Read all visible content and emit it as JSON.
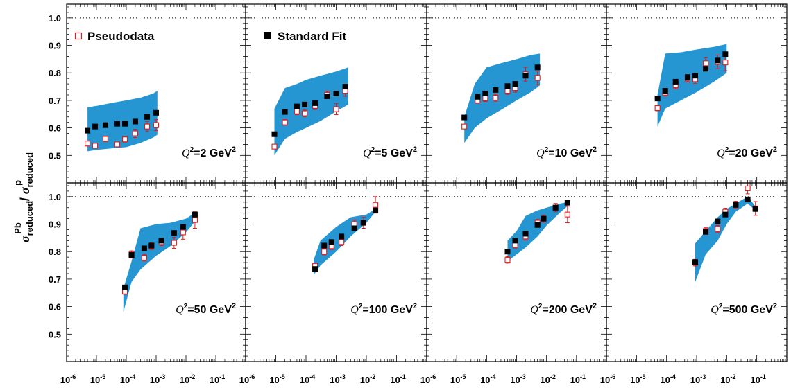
{
  "legend": {
    "pseudodata_label": "Pseudodata",
    "standard_fit_label": "Standard Fit"
  },
  "y_axis_label": {
    "sigma": "σ",
    "num_sub": "reduced",
    "num_sup": "Pb",
    "slash": " / ",
    "den_sub": "reduced",
    "den_sup": "p"
  },
  "colors": {
    "band": "#2596d1",
    "pseudodata": "#e31a1c",
    "standard_fit": "#000000"
  },
  "chart_data": [
    {
      "type": "scatter",
      "q2_label": "=2 GeV",
      "q2_var": "Q",
      "q2_exp": "2",
      "ylim": [
        0.4,
        1.05
      ],
      "xlim_log10": [
        -6,
        0
      ],
      "band": [
        [
          5e-06,
          0.675,
          0.515
        ],
        [
          1e-05,
          0.68,
          0.52
        ],
        [
          3e-05,
          0.69,
          0.525
        ],
        [
          0.0001,
          0.7,
          0.53
        ],
        [
          0.0003,
          0.71,
          0.545
        ],
        [
          0.0008,
          0.725,
          0.565
        ],
        [
          0.0011,
          0.735,
          0.575
        ]
      ],
      "standard_fit": [
        [
          5e-06,
          0.59
        ],
        [
          9e-06,
          0.605
        ],
        [
          2e-05,
          0.61
        ],
        [
          5e-05,
          0.615
        ],
        [
          9e-05,
          0.615
        ],
        [
          0.0002,
          0.623
        ],
        [
          0.0005,
          0.64
        ],
        [
          0.001,
          0.655
        ]
      ],
      "pseudodata": [
        [
          5e-06,
          0.543,
          0.008
        ],
        [
          9e-06,
          0.535,
          0.008
        ],
        [
          2e-05,
          0.56,
          0.01
        ],
        [
          5e-05,
          0.54,
          0.008
        ],
        [
          9e-05,
          0.558,
          0.01
        ],
        [
          0.0002,
          0.58,
          0.015
        ],
        [
          0.0005,
          0.605,
          0.018
        ],
        [
          0.001,
          0.61,
          0.02
        ]
      ]
    },
    {
      "type": "scatter",
      "q2_label": "=5 GeV",
      "q2_var": "Q",
      "q2_exp": "2",
      "ylim": [
        0.4,
        1.05
      ],
      "xlim_log10": [
        -6,
        0
      ],
      "band": [
        [
          9e-06,
          0.67,
          0.5
        ],
        [
          2e-05,
          0.745,
          0.56
        ],
        [
          5e-05,
          0.76,
          0.585
        ],
        [
          0.0001,
          0.775,
          0.6
        ],
        [
          0.0003,
          0.79,
          0.625
        ],
        [
          0.001,
          0.805,
          0.66
        ],
        [
          0.0025,
          0.82,
          0.685
        ]
      ],
      "standard_fit": [
        [
          9e-06,
          0.577
        ],
        [
          2e-05,
          0.658
        ],
        [
          5e-05,
          0.678
        ],
        [
          9e-05,
          0.685
        ],
        [
          0.0002,
          0.69
        ],
        [
          0.0005,
          0.715
        ],
        [
          0.001,
          0.725
        ],
        [
          0.002,
          0.75
        ]
      ],
      "pseudodata": [
        [
          9e-06,
          0.532,
          0.008
        ],
        [
          2e-05,
          0.62,
          0.01
        ],
        [
          5e-05,
          0.66,
          0.012
        ],
        [
          9e-05,
          0.653,
          0.012
        ],
        [
          0.0002,
          0.68,
          0.013
        ],
        [
          0.0005,
          0.72,
          0.013
        ],
        [
          0.001,
          0.668,
          0.02
        ],
        [
          0.002,
          0.735,
          0.02
        ]
      ]
    },
    {
      "type": "scatter",
      "q2_label": "=10 GeV",
      "q2_var": "Q",
      "q2_exp": "2",
      "ylim": [
        0.4,
        1.05
      ],
      "xlim_log10": [
        -6,
        0
      ],
      "band": [
        [
          1.8e-05,
          0.64,
          0.545
        ],
        [
          4e-05,
          0.76,
          0.6
        ],
        [
          0.0001,
          0.82,
          0.635
        ],
        [
          0.0003,
          0.835,
          0.665
        ],
        [
          0.001,
          0.85,
          0.7
        ],
        [
          0.003,
          0.865,
          0.73
        ],
        [
          0.006,
          0.87,
          0.755
        ]
      ],
      "standard_fit": [
        [
          1.8e-05,
          0.638
        ],
        [
          5e-05,
          0.713
        ],
        [
          9e-05,
          0.725
        ],
        [
          0.0002,
          0.738
        ],
        [
          0.0005,
          0.752
        ],
        [
          0.0009,
          0.76
        ],
        [
          0.002,
          0.79
        ],
        [
          0.005,
          0.82
        ]
      ],
      "pseudodata": [
        [
          1.8e-05,
          0.605,
          0.008
        ],
        [
          5e-05,
          0.7,
          0.01
        ],
        [
          9e-05,
          0.708,
          0.012
        ],
        [
          0.0002,
          0.71,
          0.013
        ],
        [
          0.0005,
          0.735,
          0.013
        ],
        [
          0.0009,
          0.745,
          0.015
        ],
        [
          0.002,
          0.795,
          0.025
        ],
        [
          0.005,
          0.782,
          0.025
        ]
      ]
    },
    {
      "type": "scatter",
      "q2_label": "=20 GeV",
      "q2_var": "Q",
      "q2_exp": "2",
      "ylim": [
        0.4,
        1.05
      ],
      "xlim_log10": [
        -6,
        0
      ],
      "band": [
        [
          5e-05,
          0.72,
          0.605
        ],
        [
          9e-05,
          0.87,
          0.67
        ],
        [
          0.0003,
          0.875,
          0.7
        ],
        [
          0.001,
          0.885,
          0.73
        ],
        [
          0.004,
          0.895,
          0.77
        ],
        [
          0.01,
          0.905,
          0.8
        ]
      ],
      "standard_fit": [
        [
          5e-05,
          0.707
        ],
        [
          9e-05,
          0.735
        ],
        [
          0.0002,
          0.768
        ],
        [
          0.0005,
          0.785
        ],
        [
          0.0009,
          0.79
        ],
        [
          0.002,
          0.815
        ],
        [
          0.005,
          0.845
        ],
        [
          0.009,
          0.868
        ]
      ],
      "pseudodata": [
        [
          5e-05,
          0.672,
          0.01
        ],
        [
          9e-05,
          0.728,
          0.012
        ],
        [
          0.0002,
          0.755,
          0.013
        ],
        [
          0.0005,
          0.78,
          0.013
        ],
        [
          0.0009,
          0.777,
          0.015
        ],
        [
          0.002,
          0.835,
          0.02
        ],
        [
          0.005,
          0.84,
          0.025
        ],
        [
          0.009,
          0.838,
          0.03
        ]
      ]
    },
    {
      "type": "scatter",
      "q2_label": "=50 GeV",
      "q2_var": "Q",
      "q2_exp": "2",
      "ylim": [
        0.4,
        1.05
      ],
      "xlim_log10": [
        -6,
        0
      ],
      "band": [
        [
          8e-05,
          0.665,
          0.58
        ],
        [
          0.00015,
          0.765,
          0.69
        ],
        [
          0.0003,
          0.885,
          0.735
        ],
        [
          0.001,
          0.9,
          0.785
        ],
        [
          0.003,
          0.905,
          0.82
        ],
        [
          0.01,
          0.92,
          0.87
        ],
        [
          0.022,
          0.945,
          0.915
        ]
      ],
      "standard_fit": [
        [
          9e-05,
          0.67
        ],
        [
          0.00015,
          0.788
        ],
        [
          0.0004,
          0.812
        ],
        [
          0.0007,
          0.822
        ],
        [
          0.0015,
          0.84
        ],
        [
          0.004,
          0.868
        ],
        [
          0.008,
          0.89
        ],
        [
          0.02,
          0.935
        ]
      ],
      "pseudodata": [
        [
          9e-05,
          0.655,
          0.01
        ],
        [
          0.00015,
          0.79,
          0.013
        ],
        [
          0.0004,
          0.778,
          0.012
        ],
        [
          0.0007,
          0.82,
          0.012
        ],
        [
          0.0015,
          0.835,
          0.013
        ],
        [
          0.004,
          0.832,
          0.02
        ],
        [
          0.008,
          0.87,
          0.025
        ],
        [
          0.02,
          0.915,
          0.03
        ]
      ]
    },
    {
      "type": "scatter",
      "q2_label": "=100 GeV",
      "q2_var": "Q",
      "q2_exp": "2",
      "ylim": [
        0.4,
        1.05
      ],
      "xlim_log10": [
        -6,
        0
      ],
      "band": [
        [
          0.00018,
          0.77,
          0.715
        ],
        [
          0.0003,
          0.84,
          0.75
        ],
        [
          0.001,
          0.89,
          0.8
        ],
        [
          0.003,
          0.925,
          0.855
        ],
        [
          0.01,
          0.935,
          0.905
        ],
        [
          0.02,
          0.955,
          0.945
        ]
      ],
      "standard_fit": [
        [
          0.0002,
          0.737
        ],
        [
          0.0004,
          0.822
        ],
        [
          0.0007,
          0.835
        ],
        [
          0.0015,
          0.855
        ],
        [
          0.004,
          0.885
        ],
        [
          0.008,
          0.905
        ],
        [
          0.02,
          0.95
        ]
      ],
      "pseudodata": [
        [
          0.0002,
          0.748,
          0.01
        ],
        [
          0.0004,
          0.8,
          0.012
        ],
        [
          0.0007,
          0.82,
          0.012
        ],
        [
          0.0015,
          0.835,
          0.013
        ],
        [
          0.004,
          0.9,
          0.015
        ],
        [
          0.008,
          0.905,
          0.02
        ],
        [
          0.02,
          0.97,
          0.03
        ]
      ]
    },
    {
      "type": "scatter",
      "q2_label": "=200 GeV",
      "q2_var": "Q",
      "q2_exp": "2",
      "ylim": [
        0.4,
        1.05
      ],
      "xlim_log10": [
        -6,
        0
      ],
      "band": [
        [
          0.0005,
          0.84,
          0.765
        ],
        [
          0.001,
          0.875,
          0.79
        ],
        [
          0.002,
          0.93,
          0.815
        ],
        [
          0.005,
          0.95,
          0.855
        ],
        [
          0.01,
          0.96,
          0.895
        ],
        [
          0.03,
          0.975,
          0.945
        ],
        [
          0.05,
          0.98,
          0.965
        ]
      ],
      "standard_fit": [
        [
          0.0005,
          0.8
        ],
        [
          0.0009,
          0.84
        ],
        [
          0.002,
          0.865
        ],
        [
          0.005,
          0.897
        ],
        [
          0.008,
          0.92
        ],
        [
          0.02,
          0.96
        ],
        [
          0.05,
          0.978
        ]
      ],
      "pseudodata": [
        [
          0.0005,
          0.77,
          0.012
        ],
        [
          0.0009,
          0.825,
          0.012
        ],
        [
          0.002,
          0.855,
          0.013
        ],
        [
          0.005,
          0.905,
          0.013
        ],
        [
          0.008,
          0.92,
          0.013
        ],
        [
          0.02,
          0.96,
          0.015
        ],
        [
          0.05,
          0.935,
          0.03
        ]
      ]
    },
    {
      "type": "scatter",
      "q2_label": "=500 GeV",
      "q2_var": "Q",
      "q2_exp": "2",
      "ylim": [
        0.4,
        1.05
      ],
      "xlim_log10": [
        -6,
        0
      ],
      "band": [
        [
          0.0009,
          0.83,
          0.69
        ],
        [
          0.002,
          0.875,
          0.79
        ],
        [
          0.005,
          0.925,
          0.84
        ],
        [
          0.01,
          0.955,
          0.9
        ],
        [
          0.02,
          0.975,
          0.945
        ],
        [
          0.05,
          1.0,
          0.975
        ],
        [
          0.09,
          0.965,
          0.95
        ]
      ],
      "standard_fit": [
        [
          0.0009,
          0.762
        ],
        [
          0.002,
          0.872
        ],
        [
          0.005,
          0.91
        ],
        [
          0.009,
          0.935
        ],
        [
          0.02,
          0.97
        ],
        [
          0.05,
          0.99
        ],
        [
          0.09,
          0.955
        ]
      ],
      "pseudodata": [
        [
          0.0009,
          0.76,
          0.012
        ],
        [
          0.002,
          0.875,
          0.012
        ],
        [
          0.005,
          0.882,
          0.013
        ],
        [
          0.009,
          0.945,
          0.013
        ],
        [
          0.02,
          0.97,
          0.013
        ],
        [
          0.05,
          1.03,
          0.02
        ],
        [
          0.09,
          0.957,
          0.025
        ]
      ]
    }
  ]
}
